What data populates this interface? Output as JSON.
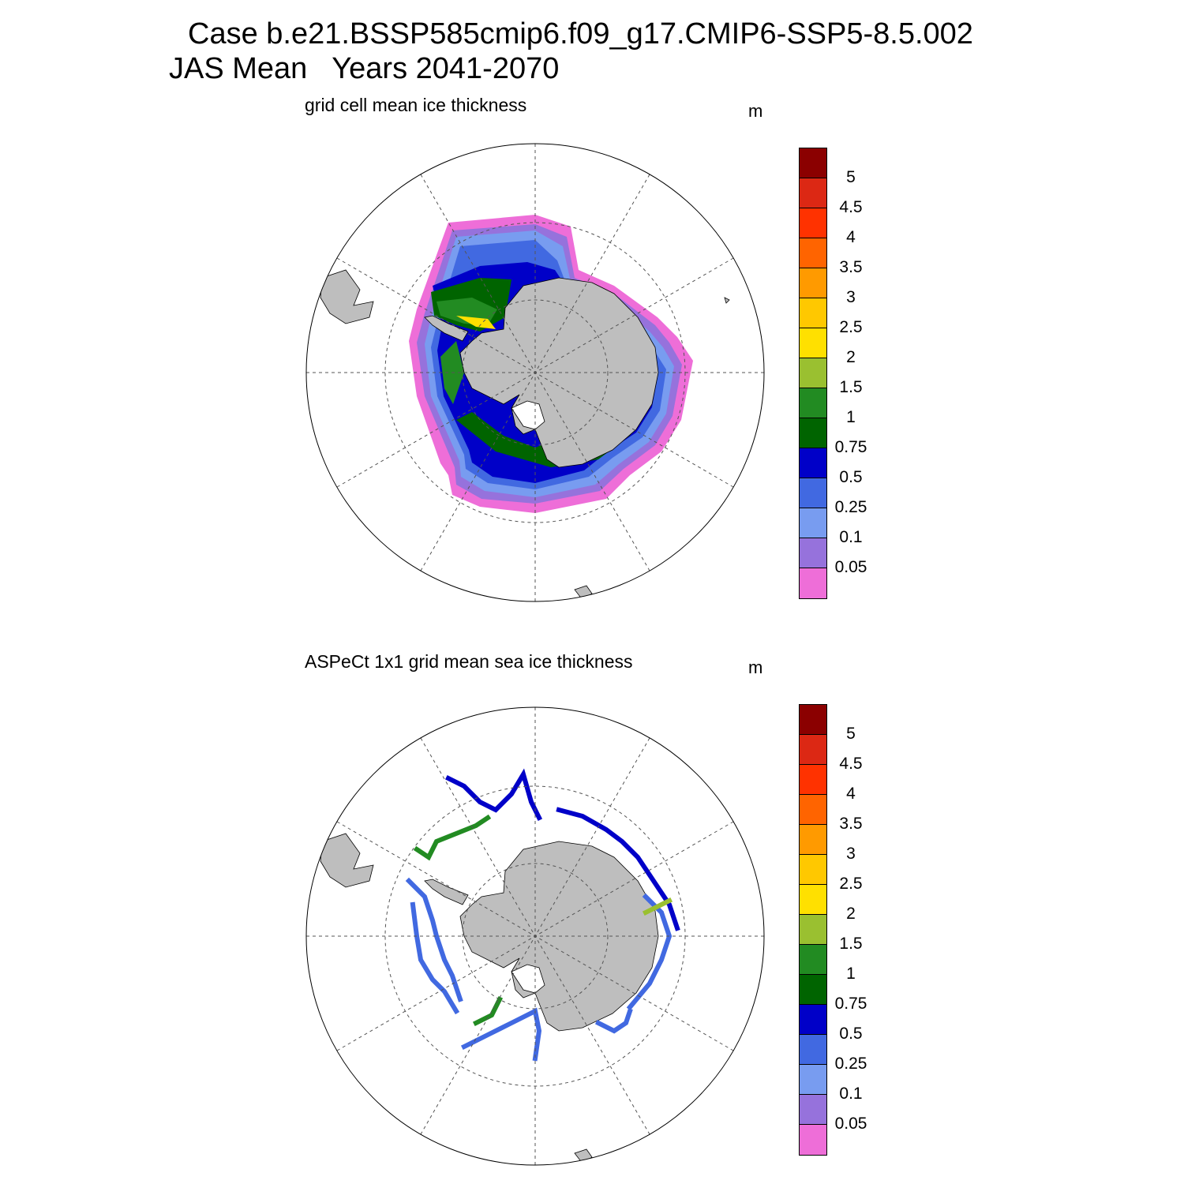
{
  "header": {
    "line1": "Case b.e21.BSSP585cmip6.f09_g17.CMIP6-SSP5-8.5.002",
    "line2": "JAS Mean   Years 2041-2070"
  },
  "colorbar": {
    "units": "m",
    "colors": [
      "#ee6ed8",
      "#9672dc",
      "#789cf0",
      "#4169e1",
      "#0000c8",
      "#006400",
      "#228b22",
      "#9ac030",
      "#ffe000",
      "#ffc800",
      "#ff9a00",
      "#ff6400",
      "#ff3200",
      "#dc2814",
      "#8b0000"
    ],
    "labels": [
      "0.05",
      "0.1",
      "0.25",
      "0.5",
      "0.75",
      "1",
      "1.5",
      "2",
      "2.5",
      "3",
      "3.5",
      "4",
      "4.5",
      "5"
    ]
  },
  "panels": [
    {
      "title": "grid cell mean ice thickness",
      "units": "m"
    },
    {
      "title": "ASPeCt 1x1 grid mean sea ice thickness",
      "units": "m"
    }
  ]
}
